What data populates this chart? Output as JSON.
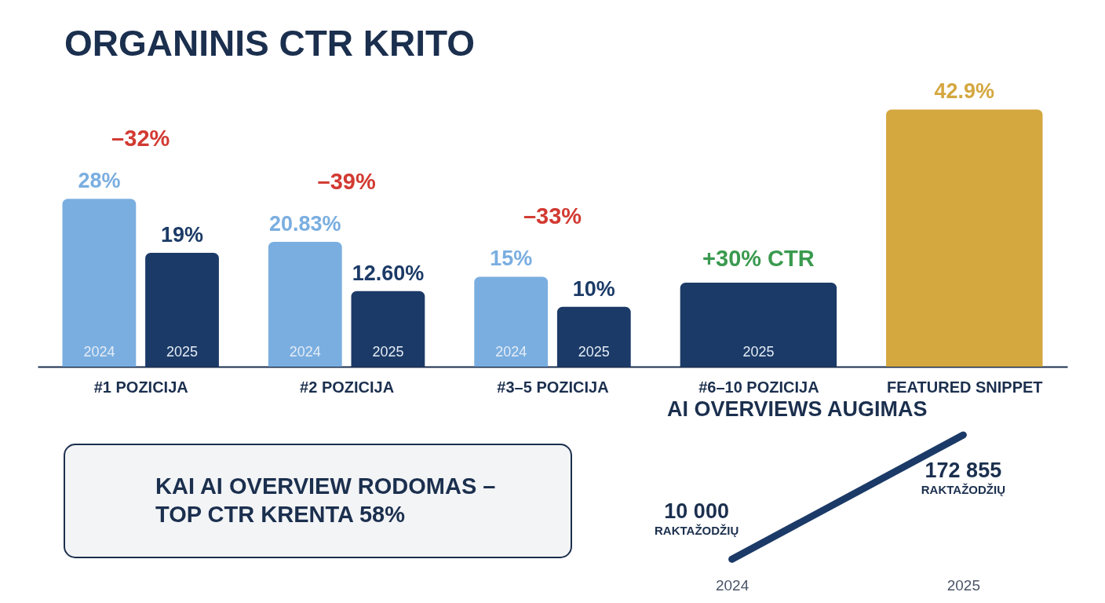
{
  "chart_data": [
    {
      "type": "bar",
      "title": "ORGANINIS CTR KRITO",
      "categories": [
        "#1 POZICIJA",
        "#2 POZICIJA",
        "#3–5 POZICIJA",
        "#6–10 POZICIJA",
        "FEATURED SNIPPET"
      ],
      "series": [
        {
          "name": "2024",
          "color": "#7aaee0",
          "values": [
            28,
            20.83,
            15,
            null,
            null
          ],
          "value_labels": [
            "28%",
            "20.83%",
            "15%",
            null,
            null
          ]
        },
        {
          "name": "2025",
          "color": "#1b3a67",
          "values": [
            19,
            12.6,
            10,
            14,
            null
          ],
          "value_labels": [
            "19%",
            "12.60%",
            "10%",
            null,
            null
          ]
        },
        {
          "color": "#d4a73f",
          "values": [
            null,
            null,
            null,
            null,
            42.9
          ],
          "value_labels": [
            null,
            null,
            null,
            null,
            "42.9%"
          ]
        }
      ],
      "annotations": [
        "–32%",
        "–39%",
        "–33%",
        {
          "text": "+30% CTR",
          "x": "#6–10 POZICIJA",
          "y": 14
        },
        "KAI AI OVERVIEW RODOMAS – TOP CTR KRENTA 58%"
      ]
    },
    {
      "type": "line",
      "title": "AI OVERVIEWS AUGIMAS",
      "categories": [
        "2024",
        "2025"
      ],
      "values": [
        10000,
        172855
      ],
      "value_labels": [
        "10 000",
        "172 855"
      ],
      "color": "#1b3a67",
      "annotations": [
        "RAKTAŽODŽIŲ",
        "RAKTAŽODŽIŲ"
      ]
    }
  ]
}
